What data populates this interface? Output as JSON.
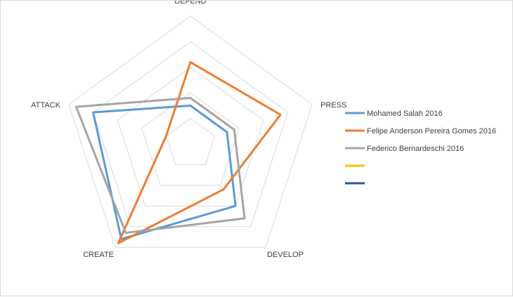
{
  "chart_data": {
    "type": "radar",
    "title": "",
    "axes": [
      "DEFEND",
      "PRESS",
      "DEVELOP",
      "CREATE",
      "ATTACK"
    ],
    "rmin": 0,
    "rmax": 5,
    "grid_levels": 5,
    "grid": true,
    "legend_position": "right",
    "series": [
      {
        "name": "Mohamed Salah 2016",
        "color": "#5b9bd5",
        "values": [
          1.5,
          1.5,
          3.0,
          4.6,
          4.0
        ]
      },
      {
        "name": "Felipe Anderson Pereira Gomes 2016",
        "color": "#ed7d31",
        "values": [
          3.2,
          3.7,
          2.2,
          4.8,
          1.0
        ]
      },
      {
        "name": "Federico Bernardeschi 2016",
        "color": "#a5a5a5",
        "values": [
          1.8,
          1.8,
          3.6,
          4.3,
          4.7
        ]
      },
      {
        "name": "",
        "color": "#ffc000",
        "values": []
      },
      {
        "name": "",
        "color": "#2f5597",
        "values": []
      }
    ]
  }
}
